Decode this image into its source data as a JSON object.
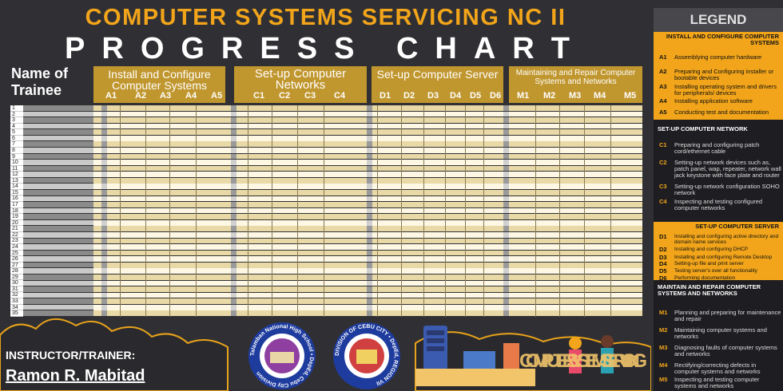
{
  "title_line1": "COMPUTER SYSTEMS SERVICING NC II",
  "title_line2": "PROGRESS CHART",
  "name_header": "Name of Trainee",
  "groups": [
    {
      "title": "Install and Configure Computer Systems",
      "cols": [
        "A1",
        "A2",
        "A3",
        "A4",
        "A5"
      ]
    },
    {
      "title": "Set-up Computer Networks",
      "cols": [
        "C1",
        "C2",
        "C3",
        "C4"
      ]
    },
    {
      "title": "Set-up Computer Server",
      "cols": [
        "D1",
        "D2",
        "D3",
        "D4",
        "D5",
        "D6"
      ]
    },
    {
      "title": "Maintaining and Repair Computer Systems and Networks",
      "cols": [
        "M1",
        "M2",
        "M3",
        "M4",
        "M5"
      ]
    }
  ],
  "row_numbers": [
    "1",
    "2",
    "3",
    "4",
    "5",
    "6",
    "7",
    "8",
    "9",
    "10",
    "11",
    "12",
    "13",
    "14",
    "15",
    "16",
    "17",
    "18",
    "19",
    "20",
    "21",
    "22",
    "23",
    "24",
    "25",
    "26",
    "27",
    "28",
    "29",
    "30",
    "31",
    "32",
    "33",
    "34",
    "35"
  ],
  "legend": {
    "title": "LEGEND",
    "sections": [
      {
        "heading": "INSTALL AND CONFIGURE COMPUTER SYSTEMS",
        "items": [
          {
            "code": "A1",
            "desc": "Assemblying computer hardware"
          },
          {
            "code": "A2",
            "desc": "Preparing and Configuring installer or bootable devices"
          },
          {
            "code": "A3",
            "desc": "Installing operating system and drivers for peripherals/ devices"
          },
          {
            "code": "A4",
            "desc": "Installing application software"
          },
          {
            "code": "A5",
            "desc": "Conducting test and documentation"
          }
        ]
      },
      {
        "heading": "SET-UP COMPUTER NETWORK",
        "items": [
          {
            "code": "C1",
            "desc": "Preparing and configuring patch cord/ethernet cable"
          },
          {
            "code": "C2",
            "desc": "Setting-up network devices such as, patch panel, wap, repeater, network wall jack keystone with face plate and router"
          },
          {
            "code": "C3",
            "desc": "Setting-up network configuration SOHO network"
          },
          {
            "code": "C4",
            "desc": "Inspecting and testing configured computer networks"
          }
        ]
      },
      {
        "heading": "SET-UP COMPUTER SERVER",
        "items": [
          {
            "code": "D1",
            "desc": "Installing and configuring active directory and domain name services"
          },
          {
            "code": "D2",
            "desc": "Installing and configuring DHCP"
          },
          {
            "code": "D3",
            "desc": "Installing and configuring Remote Desktop"
          },
          {
            "code": "D4",
            "desc": "Setting-up file and print server"
          },
          {
            "code": "D5",
            "desc": "Testing server's over all functionality"
          },
          {
            "code": "D6",
            "desc": "Performing documentation"
          }
        ]
      },
      {
        "heading": "MAINTAIN AND REPAIR COMPUTER SYSTEMS AND NETWORKS",
        "items": [
          {
            "code": "M1",
            "desc": "Planning and preparing for maintenance and repair"
          },
          {
            "code": "M2",
            "desc": "Maintaining computer systems and networks"
          },
          {
            "code": "M3",
            "desc": "Diagnosing faults of computer systems and networks"
          },
          {
            "code": "M4",
            "desc": "Rectifying/correcting defects in computer systems and networks"
          },
          {
            "code": "M5",
            "desc": "Inspecting and testing computer systems and networks"
          }
        ]
      }
    ]
  },
  "instructor_label": "INSTRUCTOR/TRAINER:",
  "instructor_name": "Ramon R. Mabitad",
  "seal1_text": "Talamban National High School • DepEd, Cebu City Division",
  "seal2_text": "DIVISION OF CEBU CITY • DepEd, REGION VII",
  "logo_text": "COMPUTER SYSTEMS SERVICING",
  "colors": {
    "accent": "#f2a51a",
    "group_header": "#c0962e",
    "row_light": "#fdf7e3",
    "row_dark": "#e8d9a6",
    "bg": "#303034",
    "legend_bg": "#1e1e22"
  }
}
